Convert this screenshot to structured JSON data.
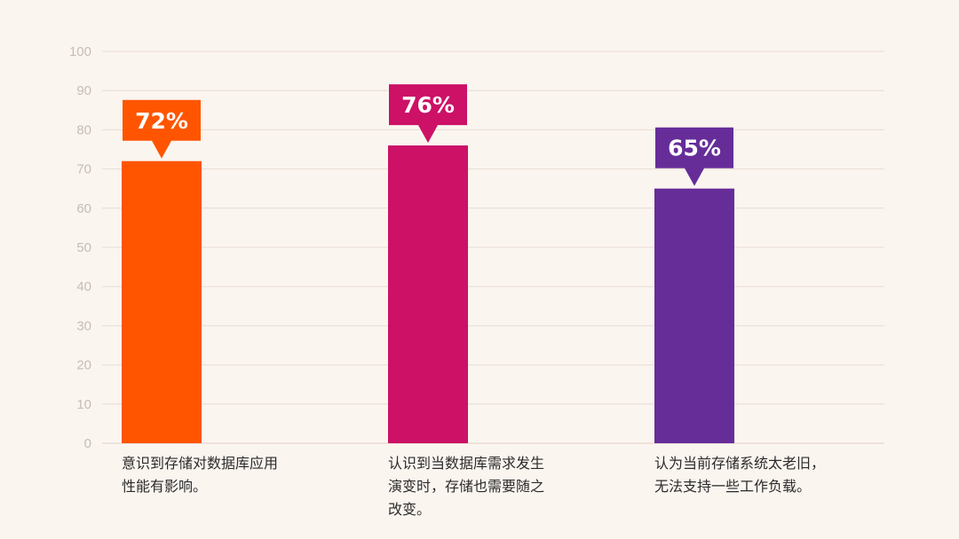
{
  "chart_data": {
    "type": "bar",
    "categories": [
      "意识到存储对数据库应用\n性能有影响。",
      "认识到当数据库需求发生\n演变时，存储也需要随之\n改变。",
      "认为当前存储系统太老旧，\n无法支持一些工作负载。"
    ],
    "values": [
      72,
      76,
      65
    ],
    "value_labels": [
      "72%",
      "76%",
      "65%"
    ],
    "colors": [
      "#ff5500",
      "#cc1166",
      "#662d99"
    ],
    "ylim": [
      0,
      100
    ],
    "yticks": [
      0,
      10,
      20,
      30,
      40,
      50,
      60,
      70,
      80,
      90,
      100
    ],
    "grid": true,
    "title": "",
    "xlabel": "",
    "ylabel": ""
  }
}
